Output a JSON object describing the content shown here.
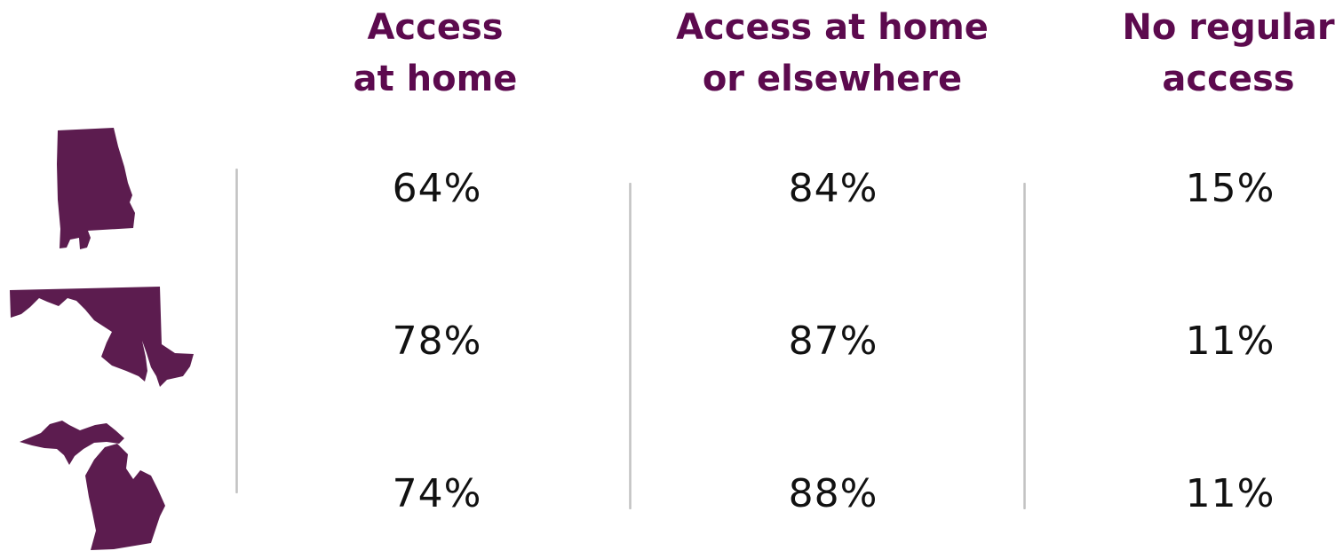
{
  "colors": {
    "header": "#5c0a4e",
    "state_fill": "#5c1c4f",
    "value_text": "#111111",
    "divider": "#c8c8c8"
  },
  "headers": {
    "at_home": [
      "Access",
      "at home"
    ],
    "home_or_elsewhere": [
      "Access at home",
      "or elsewhere"
    ],
    "no_regular": [
      "No regular",
      "access"
    ]
  },
  "rows": [
    {
      "state_icon": "alabama-state-icon",
      "at_home": "64%",
      "home_or_elsewhere": "84%",
      "no_regular": "15%"
    },
    {
      "state_icon": "maryland-state-icon",
      "at_home": "78%",
      "home_or_elsewhere": "87%",
      "no_regular": "11%"
    },
    {
      "state_icon": "michigan-state-icon",
      "at_home": "74%",
      "home_or_elsewhere": "88%",
      "no_regular": "11%"
    }
  ],
  "chart_data": {
    "type": "table",
    "columns": [
      "Access at home",
      "Access at home or elsewhere",
      "No regular access"
    ],
    "rows": [
      {
        "state_icon": "alabama-state-icon",
        "values": [
          64,
          84,
          15
        ]
      },
      {
        "state_icon": "maryland-state-icon",
        "values": [
          78,
          87,
          11
        ]
      },
      {
        "state_icon": "michigan-state-icon",
        "values": [
          74,
          88,
          11
        ]
      }
    ],
    "unit": "%"
  }
}
